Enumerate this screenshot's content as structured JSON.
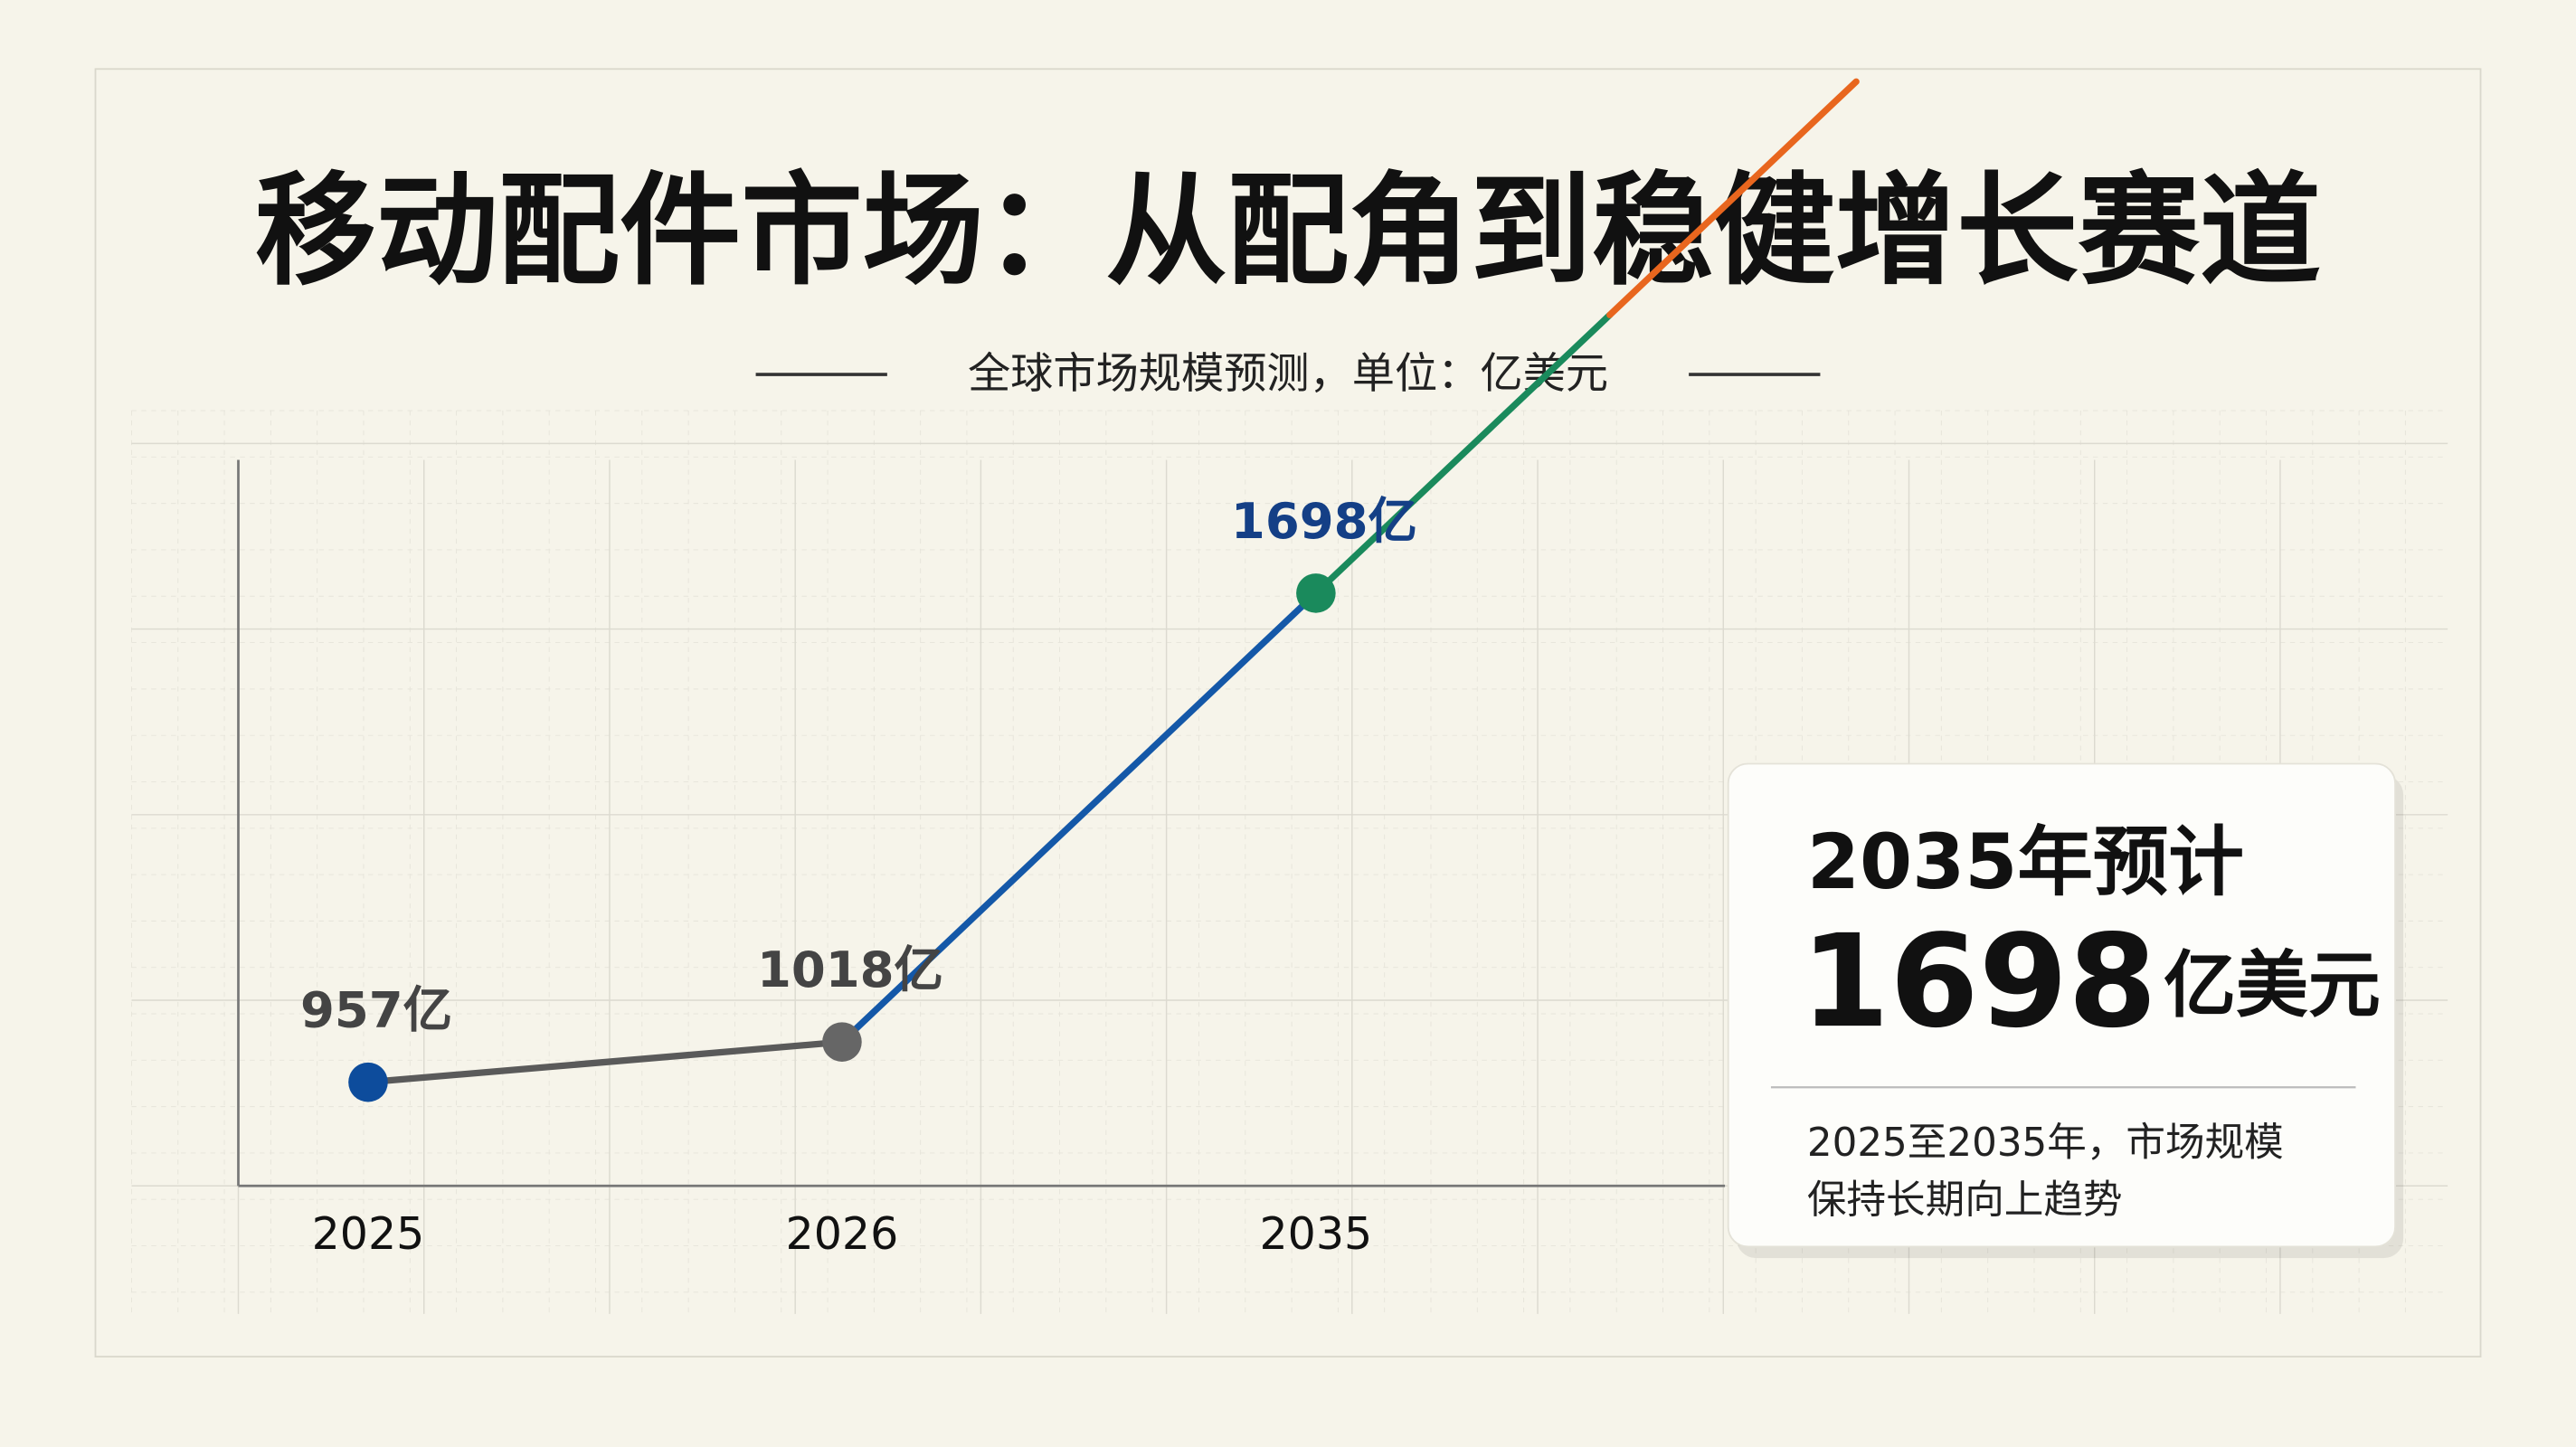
{
  "chart_data": {
    "type": "line",
    "title": "移动配件市场：从配角到稳健增长赛道",
    "subtitle": "全球市场规模预测，单位：亿美元",
    "categories": [
      "2025",
      "2026",
      "2035"
    ],
    "values": [
      957,
      1018,
      1698
    ],
    "value_labels": [
      "957亿",
      "1018亿",
      "1698亿"
    ],
    "marker_colors": [
      "#0d4c9c",
      "#666666",
      "#1a8a5c"
    ],
    "segment_colors": [
      "#5a5a5a",
      "#1458a8"
    ],
    "trend_colors": [
      "#1a8a5c",
      "#e8661e"
    ],
    "label_colors": [
      "#444444",
      "#444444",
      "#143f86"
    ],
    "ylim": [
      800,
      1900
    ],
    "grid": true
  },
  "callout": {
    "heading": "2035年预计",
    "value": 1698,
    "unit": "亿美元",
    "lines": [
      "2025至2035年，市场规模",
      "保持长期向上趋势"
    ]
  }
}
